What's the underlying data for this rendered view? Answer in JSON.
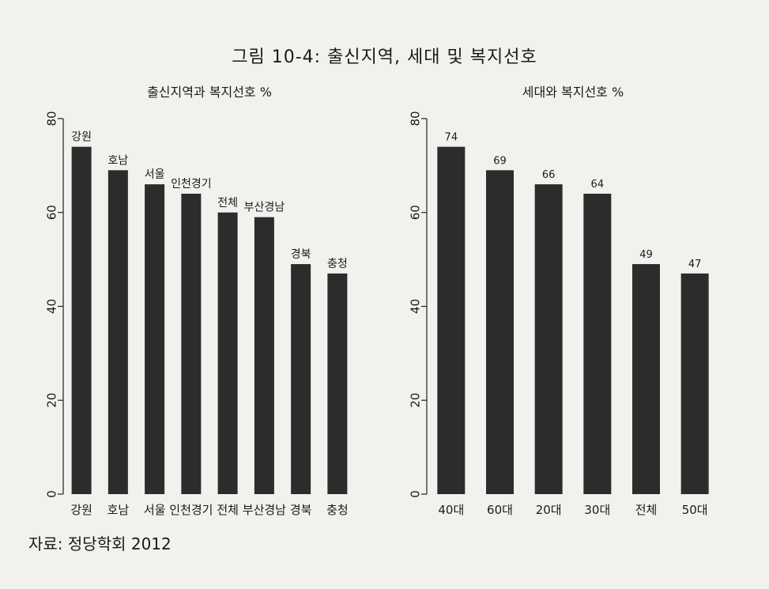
{
  "figure_title": "그림 10-4: 출신지역, 세대 및 복지선호",
  "source_note": "자료: 정당학회 2012",
  "chart_data": [
    {
      "type": "bar",
      "title": "출신지역과 복지선호 %",
      "categories": [
        "강원",
        "호남",
        "서울",
        "인천경기",
        "전체",
        "부산경남",
        "경북",
        "충청"
      ],
      "values": [
        74,
        69,
        66,
        64,
        60,
        59,
        49,
        47
      ],
      "bar_labels": [
        "강원",
        "호남",
        "서울",
        "인천경기",
        "전체",
        "부산경남",
        "경북",
        "충청"
      ],
      "ylim": [
        0,
        80
      ],
      "yticks": [
        0,
        20,
        40,
        60,
        80
      ],
      "grid": false,
      "bar_color": "#2c2c2c"
    },
    {
      "type": "bar",
      "title": "세대와 복지선호 %",
      "categories": [
        "40대",
        "60대",
        "20대",
        "30대",
        "전체",
        "50대"
      ],
      "values": [
        74,
        69,
        66,
        64,
        49,
        47
      ],
      "bar_labels": [
        "74",
        "69",
        "66",
        "64",
        "49",
        "47"
      ],
      "ylim": [
        0,
        80
      ],
      "yticks": [
        0,
        20,
        40,
        60,
        80
      ],
      "grid": false,
      "bar_color": "#2c2c2c"
    }
  ]
}
